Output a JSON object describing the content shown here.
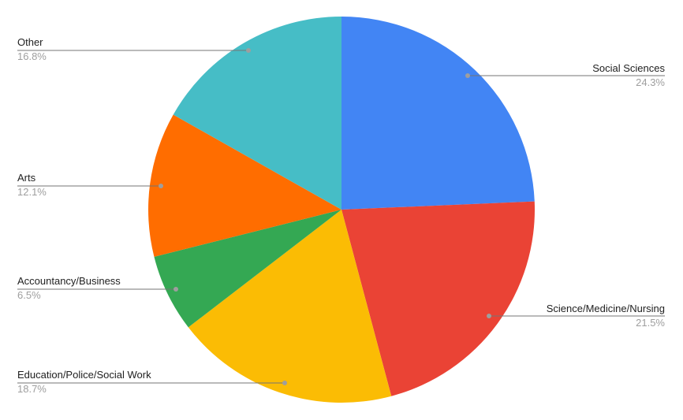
{
  "chart_data": {
    "type": "pie",
    "title": "",
    "background": "#ffffff",
    "legend_position": "labeled-callouts",
    "start_angle_deg": 0,
    "direction": "clockwise",
    "leader_line_color": "#757575",
    "leader_dot_color": "#9e9e9e",
    "label_color": "#212121",
    "percent_color": "#9e9e9e",
    "slices": [
      {
        "label": "Social Sciences",
        "value": 24.3,
        "pct_label": "24.3%",
        "color": "#4285F4"
      },
      {
        "label": "Science/Medicine/Nursing",
        "value": 21.5,
        "pct_label": "21.5%",
        "color": "#EA4335"
      },
      {
        "label": "Education/Police/Social Work",
        "value": 18.7,
        "pct_label": "18.7%",
        "color": "#FBBC04"
      },
      {
        "label": "Accountancy/Business",
        "value": 6.5,
        "pct_label": "6.5%",
        "color": "#34A853"
      },
      {
        "label": "Arts",
        "value": 12.1,
        "pct_label": "12.1%",
        "color": "#FF6D00"
      },
      {
        "label": "Other",
        "value": 16.8,
        "pct_label": "16.8%",
        "color": "#46BDC6"
      }
    ]
  }
}
